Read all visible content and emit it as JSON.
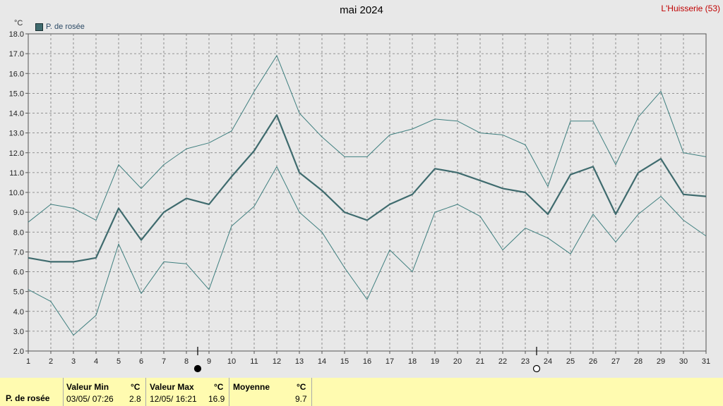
{
  "title": "mai 2024",
  "station": "L'Huisserie (53)",
  "unit": "°C",
  "legend": "P. de rosée",
  "footer": {
    "row_label": "P. de rosée",
    "min_header": "Valeur Min",
    "max_header": "Valeur Max",
    "avg_header": "Moyenne",
    "unit": "°C",
    "min_when": "03/05/  07:26",
    "min_value": "2.8",
    "max_when": "12/05/  16:21",
    "max_value": "16.9",
    "avg_value": "9.7"
  },
  "chart_data": {
    "type": "line",
    "x": [
      1,
      2,
      3,
      4,
      5,
      6,
      7,
      8,
      9,
      10,
      11,
      12,
      13,
      14,
      15,
      16,
      17,
      18,
      19,
      20,
      21,
      22,
      23,
      24,
      25,
      26,
      27,
      28,
      29,
      30,
      31
    ],
    "ylim": [
      2.0,
      18.0
    ],
    "yticks": [
      "2.0",
      "3.0",
      "4.0",
      "5.0",
      "6.0",
      "7.0",
      "8.0",
      "9.0",
      "10.0",
      "11.0",
      "12.0",
      "13.0",
      "14.0",
      "15.0",
      "16.0",
      "17.0",
      "18.0"
    ],
    "series": [
      {
        "name": "P. de rosée",
        "role": "mean",
        "values": [
          6.7,
          6.5,
          6.5,
          6.7,
          9.2,
          7.6,
          9.0,
          9.7,
          9.4,
          10.8,
          12.1,
          13.9,
          11.0,
          10.1,
          9.0,
          8.6,
          9.4,
          9.9,
          11.2,
          11.0,
          10.6,
          10.2,
          10.0,
          8.9,
          10.9,
          11.3,
          8.9,
          11.0,
          11.7,
          9.9,
          9.8
        ]
      },
      {
        "role": "max",
        "values": [
          8.5,
          9.4,
          9.2,
          8.6,
          11.4,
          10.2,
          11.4,
          12.2,
          12.5,
          13.1,
          15.1,
          16.9,
          14.0,
          12.8,
          11.8,
          11.8,
          12.9,
          13.2,
          13.7,
          13.6,
          13.0,
          12.9,
          12.4,
          10.3,
          13.6,
          13.6,
          11.4,
          13.8,
          15.1,
          12.0,
          11.8
        ]
      },
      {
        "role": "min",
        "values": [
          5.1,
          4.5,
          2.8,
          3.8,
          7.4,
          4.9,
          6.5,
          6.4,
          5.1,
          8.3,
          9.3,
          11.3,
          9.0,
          8.0,
          6.2,
          4.6,
          7.1,
          6.0,
          9.0,
          9.4,
          8.8,
          7.1,
          8.2,
          7.7,
          6.9,
          8.9,
          7.5,
          8.9,
          9.8,
          8.6,
          7.8
        ]
      }
    ],
    "colors": {
      "mean": "#3f6b6e",
      "band": "#3f7f7f",
      "grid": "#777777",
      "plot_bg": "#e8e8e8"
    },
    "moon_phases": [
      {
        "day": 8,
        "phase": "new-moon"
      },
      {
        "day": 23,
        "phase": "full-moon"
      }
    ],
    "grid": true,
    "legend_position": "top-left"
  }
}
